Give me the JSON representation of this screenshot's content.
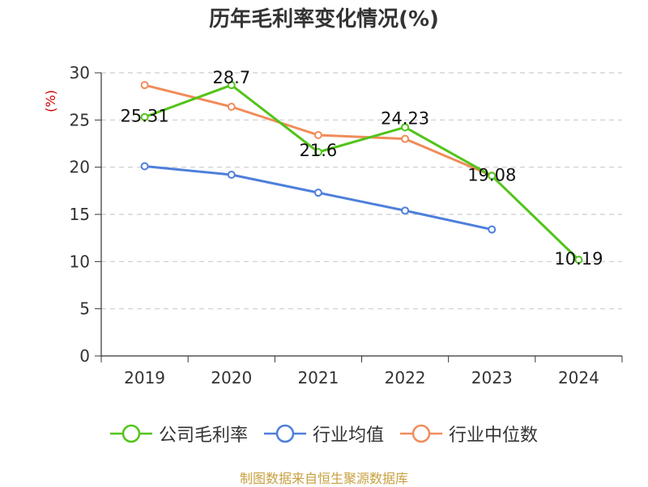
{
  "title": "历年毛利率变化情况(%)",
  "source": "制图数据来自恒生聚源数据库",
  "colors": {
    "source_text": "#c8a040",
    "ylabel_text": "#cc0000",
    "axis": "#333333",
    "grid": "#cccccc"
  },
  "chart_data": {
    "type": "line",
    "title": "历年毛利率变化情况(%)",
    "ylabel": "(%)",
    "xlabel": "",
    "categories": [
      "2019",
      "2020",
      "2021",
      "2022",
      "2023",
      "2024"
    ],
    "ylim": [
      0,
      30
    ],
    "yticks": [
      0,
      5,
      10,
      15,
      20,
      25,
      30
    ],
    "grid": true,
    "legend_position": "bottom",
    "series": [
      {
        "name": "公司毛利率",
        "color": "#52c41a",
        "values": [
          25.31,
          28.7,
          21.6,
          24.23,
          19.08,
          10.19
        ],
        "labels": [
          "25.31",
          "28.7",
          "21.6",
          "24.23",
          "19.08",
          "10.19"
        ]
      },
      {
        "name": "行业均值",
        "color": "#4e7fdb",
        "values": [
          20.1,
          19.2,
          17.3,
          15.4,
          13.4,
          null
        ]
      },
      {
        "name": "行业中位数",
        "color": "#f08c5a",
        "values": [
          28.7,
          26.4,
          23.4,
          23.0,
          19.1,
          null
        ]
      }
    ]
  }
}
